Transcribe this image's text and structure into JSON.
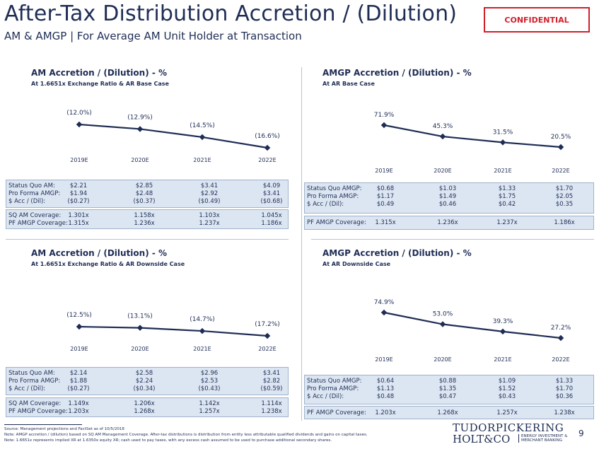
{
  "header": {
    "title": "After-Tax Distribution Accretion / (Dilution)",
    "subtitle": "AM & AMGP | For Average AM Unit Holder at Transaction",
    "confidential": "CONFIDENTIAL"
  },
  "panels": [
    {
      "title": "AM Accretion / (Dilution) - %",
      "subtitle": "At 1.6651x Exchange Ratio & AR Base Case",
      "chart_data": {
        "type": "line",
        "categories": [
          "2019E",
          "2020E",
          "2021E",
          "2022E"
        ],
        "values": [
          -12.0,
          -12.9,
          -14.5,
          -16.6
        ],
        "labels": [
          "(12.0%)",
          "(12.9%)",
          "(14.5%)",
          "(16.6%)"
        ],
        "color": "#1f2d55"
      },
      "rows": [
        {
          "label": "Status Quo AM:",
          "values": [
            "$2.21",
            "$2.85",
            "$3.41",
            "$4.09"
          ]
        },
        {
          "label": "Pro Forma AMGP:",
          "values": [
            "$1.94",
            "$2.48",
            "$2.92",
            "$3.41"
          ]
        },
        {
          "label": "$ Acc / (Dil):",
          "values": [
            "($0.27)",
            "($0.37)",
            "($0.49)",
            "($0.68)"
          ]
        }
      ],
      "coverage": [
        {
          "label": "SQ AM Coverage:",
          "values": [
            "1.301x",
            "1.158x",
            "1.103x",
            "1.045x"
          ]
        },
        {
          "label": "PF AMGP Coverage:",
          "values": [
            "1.315x",
            "1.236x",
            "1.237x",
            "1.186x"
          ]
        }
      ]
    },
    {
      "title": "AMGP Accretion / (Dilution) - %",
      "subtitle": "At AR Base Case",
      "chart_data": {
        "type": "line",
        "categories": [
          "2019E",
          "2020E",
          "2021E",
          "2022E"
        ],
        "values": [
          71.9,
          45.3,
          31.5,
          20.5
        ],
        "labels": [
          "71.9%",
          "45.3%",
          "31.5%",
          "20.5%"
        ],
        "color": "#1f2d55"
      },
      "rows": [
        {
          "label": "Status Quo AMGP:",
          "values": [
            "$0.68",
            "$1.03",
            "$1.33",
            "$1.70"
          ]
        },
        {
          "label": "Pro Forma AMGP:",
          "values": [
            "$1.17",
            "$1.49",
            "$1.75",
            "$2.05"
          ]
        },
        {
          "label": "$ Acc / (Dil):",
          "values": [
            "$0.49",
            "$0.46",
            "$0.42",
            "$0.35"
          ]
        }
      ],
      "coverage": [
        {
          "label": "PF AMGP Coverage:",
          "values": [
            "1.315x",
            "1.236x",
            "1.237x",
            "1.186x"
          ]
        }
      ]
    },
    {
      "title": "AM Accretion / (Dilution) - %",
      "subtitle": "At 1.6651x Exchange Ratio & AR Downside Case",
      "chart_data": {
        "type": "line",
        "categories": [
          "2019E",
          "2020E",
          "2021E",
          "2022E"
        ],
        "values": [
          -12.5,
          -13.1,
          -14.7,
          -17.2
        ],
        "labels": [
          "(12.5%)",
          "(13.1%)",
          "(14.7%)",
          "(17.2%)"
        ],
        "color": "#1f2d55"
      },
      "rows": [
        {
          "label": "Status Quo AM:",
          "values": [
            "$2.14",
            "$2.58",
            "$2.96",
            "$3.41"
          ]
        },
        {
          "label": "Pro Forma AMGP:",
          "values": [
            "$1.88",
            "$2.24",
            "$2.53",
            "$2.82"
          ]
        },
        {
          "label": "$ Acc / (Dil):",
          "values": [
            "($0.27)",
            "($0.34)",
            "($0.43)",
            "($0.59)"
          ]
        }
      ],
      "coverage": [
        {
          "label": "SQ AM Coverage:",
          "values": [
            "1.149x",
            "1.206x",
            "1.142x",
            "1.114x"
          ]
        },
        {
          "label": "PF AMGP Coverage:",
          "values": [
            "1.203x",
            "1.268x",
            "1.257x",
            "1.238x"
          ]
        }
      ]
    },
    {
      "title": "AMGP Accretion / (Dilution) - %",
      "subtitle": "At AR Downside Case",
      "chart_data": {
        "type": "line",
        "categories": [
          "2019E",
          "2020E",
          "2021E",
          "2022E"
        ],
        "values": [
          74.9,
          53.0,
          39.3,
          27.2
        ],
        "labels": [
          "74.9%",
          "53.0%",
          "39.3%",
          "27.2%"
        ],
        "color": "#1f2d55"
      },
      "rows": [
        {
          "label": "Status Quo AMGP:",
          "values": [
            "$0.64",
            "$0.88",
            "$1.09",
            "$1.33"
          ]
        },
        {
          "label": "Pro Forma AMGP:",
          "values": [
            "$1.13",
            "$1.35",
            "$1.52",
            "$1.70"
          ]
        },
        {
          "label": "$ Acc / (Dil):",
          "values": [
            "$0.48",
            "$0.47",
            "$0.43",
            "$0.36"
          ]
        }
      ],
      "coverage": [
        {
          "label": "PF AMGP Coverage:",
          "values": [
            "1.203x",
            "1.268x",
            "1.257x",
            "1.238x"
          ]
        }
      ]
    }
  ],
  "footer": {
    "source": "Source: Management projections and FactSet as of 10/5/2018",
    "note1": "Note: AMGP accretion / (dilution) based on SQ AM Management Coverage. After-tax distributions is distribution from entity less attributable qualified dividends and gains on capital taxes.",
    "note2": "Note: 1.6651x represents implied XR at 1.6350x equity XR; cash used to pay taxes, with any excess cash assumed to be used to purchase additional secondary shares.",
    "logo_line1": "TUDORPICKERING",
    "logo_line2": "HOLT&CO",
    "logo_tag1": "ENERGY INVESTMENT &",
    "logo_tag2": "MERCHANT BANKING",
    "page_number": "9"
  }
}
